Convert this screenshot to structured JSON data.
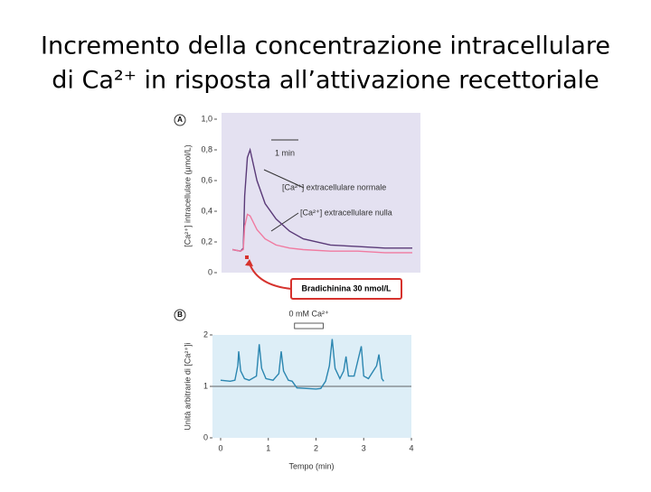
{
  "title": [
    "Incremento della concentrazione intracellulare",
    "di Ca²⁺ in risposta all’attivazione recettoriale"
  ],
  "chart_data": [
    {
      "type": "line",
      "panel": "A",
      "ylabel": "[Ca²⁺] intracellulare (µmol/L)",
      "xlim": [
        0,
        7.3
      ],
      "ylim": [
        0,
        1
      ],
      "yticks": [
        {
          "value": 0,
          "label": "0"
        },
        {
          "value": 0.2,
          "label": "0,2"
        },
        {
          "value": 0.4,
          "label": "0,4"
        },
        {
          "value": 0.6,
          "label": "0,6"
        },
        {
          "value": 0.8,
          "label": "0,8"
        },
        {
          "value": 1,
          "label": "1,0"
        }
      ],
      "x": [
        0.4,
        0.7,
        0.8,
        0.85,
        0.95,
        1.05,
        1.3,
        1.6,
        2,
        2.5,
        3,
        4,
        5,
        6,
        7
      ],
      "series": [
        {
          "name": "[Ca²⁺] extracellulare normale",
          "color": "#5a3a78",
          "values": [
            0.15,
            0.14,
            0.16,
            0.5,
            0.75,
            0.8,
            0.6,
            0.45,
            0.35,
            0.27,
            0.22,
            0.18,
            0.17,
            0.16,
            0.16
          ]
        },
        {
          "name": "[Ca²⁺] extracellulare nulla",
          "color": "#f07aa0",
          "values": [
            0.15,
            0.14,
            0.15,
            0.3,
            0.38,
            0.37,
            0.28,
            0.22,
            0.18,
            0.16,
            0.15,
            0.14,
            0.14,
            0.13,
            0.13
          ]
        }
      ],
      "scale_bar": "1 min",
      "stimulus": {
        "label": "Bradichinina 30 nmol/L",
        "x": 0.93
      }
    },
    {
      "type": "line",
      "panel": "B",
      "ylabel": "Unità arbitrarie di [Ca²⁺]i",
      "xlabel": "Tempo (min)",
      "xlim": [
        0,
        4
      ],
      "ylim": [
        0,
        2
      ],
      "xticks": [
        0,
        1,
        2,
        3,
        4
      ],
      "yticks": [
        0,
        1,
        2
      ],
      "x": [
        0,
        0.2,
        0.3,
        0.36,
        0.38,
        0.42,
        0.5,
        0.6,
        0.75,
        0.81,
        0.86,
        0.95,
        1.1,
        1.22,
        1.27,
        1.32,
        1.42,
        1.5,
        1.6,
        1.8,
        2.0,
        2.1,
        2.2,
        2.28,
        2.34,
        2.4,
        2.5,
        2.58,
        2.63,
        2.68,
        2.8,
        2.95,
        3.0,
        3.1,
        3.27,
        3.32,
        3.38,
        3.42
      ],
      "series": [
        {
          "color": "#2b86b0",
          "values": [
            1.12,
            1.1,
            1.12,
            1.4,
            1.68,
            1.3,
            1.15,
            1.12,
            1.2,
            1.82,
            1.35,
            1.15,
            1.12,
            1.25,
            1.68,
            1.3,
            1.12,
            1.1,
            0.97,
            0.96,
            0.95,
            0.96,
            1.1,
            1.4,
            1.92,
            1.35,
            1.15,
            1.3,
            1.58,
            1.2,
            1.2,
            1.78,
            1.2,
            1.15,
            1.4,
            1.62,
            1.15,
            1.1
          ]
        }
      ],
      "band": {
        "label": "0 mM Ca²⁺",
        "x": [
          1.55,
          2.15
        ]
      }
    }
  ]
}
